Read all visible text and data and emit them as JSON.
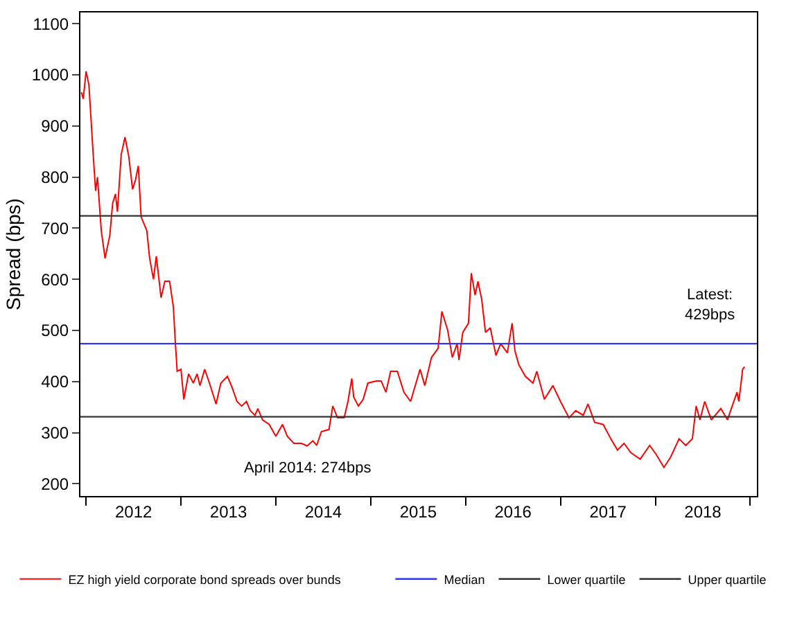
{
  "chart_data": {
    "type": "line",
    "ylabel": "Spread (bps)",
    "x": [
      2011.95,
      2011.97,
      2012.0,
      2012.03,
      2012.07,
      2012.1,
      2012.12,
      2012.16,
      2012.2,
      2012.25,
      2012.28,
      2012.31,
      2012.33,
      2012.37,
      2012.41,
      2012.45,
      2012.49,
      2012.52,
      2012.55,
      2012.58,
      2012.64,
      2012.67,
      2012.71,
      2012.74,
      2012.79,
      2012.83,
      2012.88,
      2012.92,
      2012.94,
      2012.96,
      2013.0,
      2013.03,
      2013.08,
      2013.13,
      2013.17,
      2013.2,
      2013.25,
      2013.3,
      2013.37,
      2013.42,
      2013.49,
      2013.54,
      2013.59,
      2013.64,
      2013.69,
      2013.73,
      2013.78,
      2013.81,
      2013.86,
      2013.93,
      2014.0,
      2014.07,
      2014.12,
      2014.19,
      2014.27,
      2014.33,
      2014.39,
      2014.43,
      2014.48,
      2014.56,
      2014.6,
      2014.65,
      2014.72,
      2014.76,
      2014.8,
      2014.82,
      2014.87,
      2014.92,
      2014.97,
      2015.06,
      2015.11,
      2015.16,
      2015.21,
      2015.28,
      2015.35,
      2015.42,
      2015.52,
      2015.57,
      2015.64,
      2015.71,
      2015.75,
      2015.81,
      2015.86,
      2015.91,
      2015.93,
      2015.97,
      2016.03,
      2016.06,
      2016.1,
      2016.13,
      2016.17,
      2016.21,
      2016.26,
      2016.32,
      2016.37,
      2016.44,
      2016.49,
      2016.52,
      2016.56,
      2016.63,
      2016.71,
      2016.75,
      2016.83,
      2016.92,
      2017.0,
      2017.09,
      2017.16,
      2017.24,
      2017.29,
      2017.36,
      2017.45,
      2017.53,
      2017.6,
      2017.67,
      2017.74,
      2017.84,
      2017.94,
      2018.01,
      2018.09,
      2018.16,
      2018.25,
      2018.32,
      2018.39,
      2018.43,
      2018.47,
      2018.52,
      2018.59,
      2018.69,
      2018.76,
      2018.81,
      2018.86,
      2018.88,
      2018.92,
      2018.94
    ],
    "series": [
      {
        "name": "EZ high yield corporate bond spreads over bunds",
        "color": "#ff0000",
        "values": [
          966,
          953,
          1007,
          980,
          858,
          773,
          800,
          695,
          641,
          686,
          749,
          767,
          732,
          844,
          878,
          840,
          776,
          794,
          822,
          722,
          695,
          641,
          600,
          645,
          564,
          596,
          596,
          546,
          478,
          420,
          424,
          365,
          415,
          397,
          415,
          392,
          424,
          397,
          356,
          397,
          410,
          388,
          361,
          352,
          361,
          343,
          334,
          347,
          325,
          316,
          293,
          316,
          293,
          279,
          279,
          274,
          284,
          275,
          302,
          306,
          352,
          329,
          329,
          361,
          406,
          370,
          352,
          365,
          397,
          401,
          401,
          379,
          420,
          420,
          379,
          361,
          424,
          392,
          447,
          465,
          537,
          501,
          447,
          474,
          442,
          496,
          514,
          612,
          569,
          596,
          560,
          496,
          505,
          451,
          474,
          456,
          514,
          460,
          433,
          410,
          397,
          420,
          365,
          392,
          361,
          329,
          343,
          334,
          356,
          320,
          316,
          288,
          266,
          279,
          261,
          248,
          275,
          257,
          232,
          252,
          288,
          275,
          288,
          352,
          325,
          361,
          325,
          347,
          325,
          352,
          379,
          361,
          424,
          429
        ]
      }
    ],
    "ref_lines": [
      {
        "axis": "y",
        "value": 474,
        "label": "Median",
        "color": "#3333ff"
      },
      {
        "axis": "y",
        "value": 331,
        "label": "Lower quartile",
        "color": "#333333"
      },
      {
        "axis": "y",
        "value": 724,
        "label": "Upper quartile",
        "color": "#333333"
      }
    ],
    "annotations": [
      {
        "text": "April 2014: 274bps",
        "x": 2014.33,
        "y": 274
      },
      {
        "text": "Latest:\n429bps",
        "x": 2018.94,
        "y": 429
      }
    ],
    "xlim": [
      2011.94,
      2019.07
    ],
    "xticks": [
      {
        "value": 2012,
        "label": null
      },
      {
        "value": 2012.5,
        "label": "2012"
      },
      {
        "value": 2013,
        "label": null
      },
      {
        "value": 2013.5,
        "label": "2013"
      },
      {
        "value": 2014,
        "label": null
      },
      {
        "value": 2014.5,
        "label": "2014"
      },
      {
        "value": 2015,
        "label": null
      },
      {
        "value": 2015.5,
        "label": "2015"
      },
      {
        "value": 2016,
        "label": null
      },
      {
        "value": 2016.5,
        "label": "2016"
      },
      {
        "value": 2017,
        "label": null
      },
      {
        "value": 2017.5,
        "label": "2017"
      },
      {
        "value": 2018,
        "label": null
      },
      {
        "value": 2018.5,
        "label": "2018"
      },
      {
        "value": 2019,
        "label": null
      }
    ],
    "ylim": [
      176,
      1122
    ],
    "yticks": [
      200,
      300,
      400,
      500,
      600,
      700,
      800,
      900,
      1000,
      1100
    ],
    "legend": "bottom",
    "marker": "none",
    "line_style": "solid"
  }
}
